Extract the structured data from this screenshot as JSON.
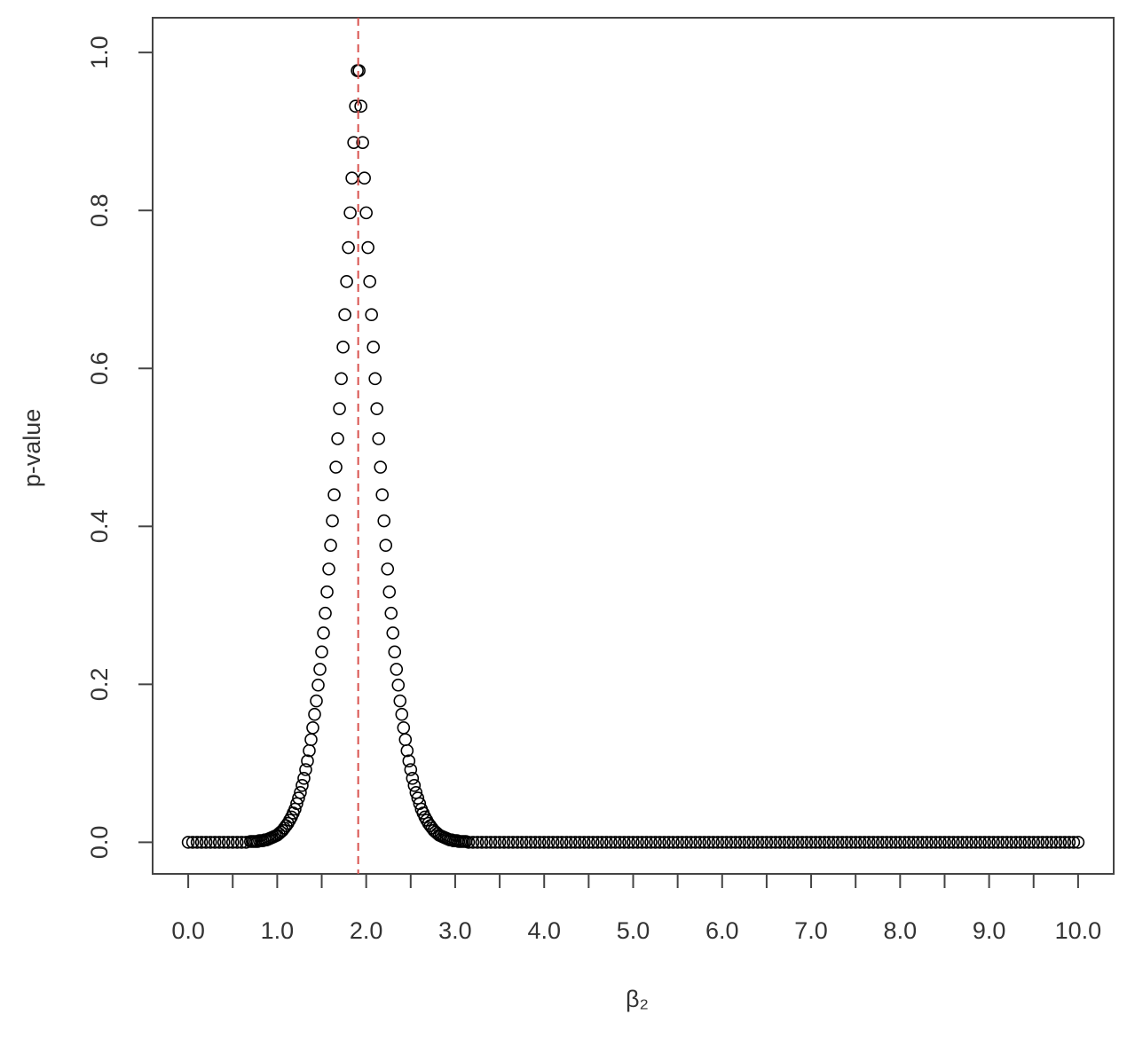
{
  "chart_data": {
    "type": "scatter",
    "xlabel": "β₂",
    "ylabel": "p-value",
    "point_color": "#000000",
    "vline": 1.91,
    "vline_color": "#d9534f",
    "xlim": [
      -0.4,
      10.4
    ],
    "ylim": [
      -0.04,
      1.044
    ],
    "xticks": [
      {
        "value": 0,
        "label": "0.0"
      },
      {
        "value": 1,
        "label": "1.0"
      },
      {
        "value": 2,
        "label": "2.0"
      },
      {
        "value": 3,
        "label": "3.0"
      },
      {
        "value": 4,
        "label": "4.0"
      },
      {
        "value": 5,
        "label": "5.0"
      },
      {
        "value": 6,
        "label": "6.0"
      },
      {
        "value": 7,
        "label": "7.0"
      },
      {
        "value": 8,
        "label": "8.0"
      },
      {
        "value": 9,
        "label": "9.0"
      },
      {
        "value": 10,
        "label": "10.0"
      }
    ],
    "xminor_ticks": [
      0.5,
      1.5,
      2.5,
      3.5,
      4.5,
      5.5,
      6.5,
      7.5,
      8.5,
      9.5
    ],
    "yticks": [
      {
        "value": 0,
        "label": "0.0"
      },
      {
        "value": 0.2,
        "label": "0.2"
      },
      {
        "value": 0.4,
        "label": "0.4"
      },
      {
        "value": 0.6,
        "label": "0.6"
      },
      {
        "value": 0.8,
        "label": "0.8"
      },
      {
        "value": 1,
        "label": "1.0"
      }
    ],
    "x": [
      0,
      0.05,
      0.1,
      0.15,
      0.2,
      0.25,
      0.3,
      0.35,
      0.4,
      0.45,
      0.5,
      0.55,
      0.6,
      0.65,
      0.7,
      0.72,
      0.74,
      0.76,
      0.78,
      0.8,
      0.82,
      0.84,
      0.86,
      0.88,
      0.9,
      0.92,
      0.94,
      0.96,
      0.98,
      1,
      1.02,
      1.04,
      1.06,
      1.08,
      1.1,
      1.12,
      1.14,
      1.16,
      1.18,
      1.2,
      1.22,
      1.24,
      1.26,
      1.28,
      1.3,
      1.32,
      1.34,
      1.36,
      1.38,
      1.4,
      1.42,
      1.44,
      1.46,
      1.48,
      1.5,
      1.52,
      1.54,
      1.56,
      1.58,
      1.6,
      1.62,
      1.64,
      1.66,
      1.68,
      1.7,
      1.72,
      1.74,
      1.76,
      1.78,
      1.8,
      1.82,
      1.84,
      1.86,
      1.88,
      1.9,
      1.92,
      1.94,
      1.96,
      1.98,
      2,
      2.02,
      2.04,
      2.06,
      2.08,
      2.1,
      2.12,
      2.14,
      2.16,
      2.18,
      2.2,
      2.22,
      2.24,
      2.26,
      2.28,
      2.3,
      2.32,
      2.34,
      2.36,
      2.38,
      2.4,
      2.42,
      2.44,
      2.46,
      2.48,
      2.5,
      2.52,
      2.54,
      2.56,
      2.58,
      2.6,
      2.62,
      2.64,
      2.66,
      2.68,
      2.7,
      2.72,
      2.74,
      2.76,
      2.78,
      2.8,
      2.82,
      2.84,
      2.86,
      2.88,
      2.9,
      2.92,
      2.94,
      2.96,
      2.98,
      3,
      3.02,
      3.04,
      3.06,
      3.08,
      3.1,
      3.12,
      3.15,
      3.2,
      3.25,
      3.3,
      3.35,
      3.4,
      3.45,
      3.5,
      3.55,
      3.6,
      3.65,
      3.7,
      3.75,
      3.8,
      3.85,
      3.9,
      3.95,
      4,
      4.05,
      4.1,
      4.15,
      4.2,
      4.25,
      4.3,
      4.35,
      4.4,
      4.45,
      4.5,
      4.55,
      4.6,
      4.65,
      4.7,
      4.75,
      4.8,
      4.85,
      4.9,
      4.95,
      5,
      5.05,
      5.1,
      5.15,
      5.2,
      5.25,
      5.3,
      5.35,
      5.4,
      5.45,
      5.5,
      5.55,
      5.6,
      5.65,
      5.7,
      5.75,
      5.8,
      5.85,
      5.9,
      5.95,
      6,
      6.05,
      6.1,
      6.15,
      6.2,
      6.25,
      6.3,
      6.35,
      6.4,
      6.45,
      6.5,
      6.55,
      6.6,
      6.65,
      6.7,
      6.75,
      6.8,
      6.85,
      6.9,
      6.95,
      7,
      7.05,
      7.1,
      7.15,
      7.2,
      7.25,
      7.3,
      7.35,
      7.4,
      7.45,
      7.5,
      7.55,
      7.6,
      7.65,
      7.7,
      7.75,
      7.8,
      7.85,
      7.9,
      7.95,
      8,
      8.05,
      8.1,
      8.15,
      8.2,
      8.25,
      8.3,
      8.35,
      8.4,
      8.45,
      8.5,
      8.55,
      8.6,
      8.65,
      8.7,
      8.75,
      8.8,
      8.85,
      8.9,
      8.95,
      9,
      9.05,
      9.1,
      9.15,
      9.2,
      9.25,
      9.3,
      9.35,
      9.4,
      9.45,
      9.5,
      9.55,
      9.6,
      9.65,
      9.7,
      9.75,
      9.8,
      9.85,
      9.9,
      9.95,
      10
    ],
    "values": [
      0,
      0,
      0,
      0,
      0,
      0,
      0,
      0,
      0,
      0,
      0,
      0,
      0,
      0,
      0.001,
      0.001,
      0.001,
      0.001,
      0.001,
      0.002,
      0.002,
      0.002,
      0.003,
      0.003,
      0.004,
      0.005,
      0.006,
      0.007,
      0.008,
      0.009,
      0.011,
      0.013,
      0.015,
      0.018,
      0.021,
      0.024,
      0.028,
      0.032,
      0.037,
      0.042,
      0.049,
      0.056,
      0.063,
      0.072,
      0.081,
      0.092,
      0.103,
      0.116,
      0.13,
      0.145,
      0.162,
      0.179,
      0.199,
      0.219,
      0.241,
      0.265,
      0.29,
      0.317,
      0.346,
      0.376,
      0.407,
      0.44,
      0.475,
      0.511,
      0.549,
      0.587,
      0.627,
      0.668,
      0.71,
      0.753,
      0.797,
      0.841,
      0.886,
      0.932,
      0.977,
      0.977,
      0.932,
      0.886,
      0.841,
      0.797,
      0.753,
      0.71,
      0.668,
      0.627,
      0.587,
      0.549,
      0.511,
      0.475,
      0.44,
      0.407,
      0.376,
      0.346,
      0.317,
      0.29,
      0.265,
      0.241,
      0.219,
      0.199,
      0.179,
      0.162,
      0.145,
      0.13,
      0.116,
      0.103,
      0.092,
      0.081,
      0.072,
      0.063,
      0.056,
      0.049,
      0.042,
      0.037,
      0.032,
      0.028,
      0.024,
      0.021,
      0.018,
      0.015,
      0.013,
      0.011,
      0.009,
      0.008,
      0.007,
      0.006,
      0.005,
      0.004,
      0.003,
      0.003,
      0.002,
      0.002,
      0.002,
      0.001,
      0.001,
      0.001,
      0.001,
      0.001,
      0,
      0,
      0,
      0,
      0,
      0,
      0,
      0,
      0,
      0,
      0,
      0,
      0,
      0,
      0,
      0,
      0,
      0,
      0,
      0,
      0,
      0,
      0,
      0,
      0,
      0,
      0,
      0,
      0,
      0,
      0,
      0,
      0,
      0,
      0,
      0,
      0,
      0,
      0,
      0,
      0,
      0,
      0,
      0,
      0,
      0,
      0,
      0,
      0,
      0,
      0,
      0,
      0,
      0,
      0,
      0,
      0,
      0,
      0,
      0,
      0,
      0,
      0,
      0,
      0,
      0,
      0,
      0,
      0,
      0,
      0,
      0,
      0,
      0,
      0,
      0,
      0,
      0,
      0,
      0,
      0,
      0,
      0,
      0,
      0,
      0,
      0,
      0,
      0,
      0,
      0,
      0,
      0,
      0,
      0,
      0,
      0,
      0,
      0,
      0,
      0,
      0,
      0,
      0,
      0,
      0,
      0,
      0,
      0,
      0,
      0,
      0,
      0,
      0,
      0,
      0,
      0,
      0,
      0,
      0,
      0,
      0,
      0,
      0,
      0,
      0,
      0,
      0,
      0,
      0,
      0,
      0,
      0,
      0,
      0,
      0,
      0,
      0
    ]
  }
}
